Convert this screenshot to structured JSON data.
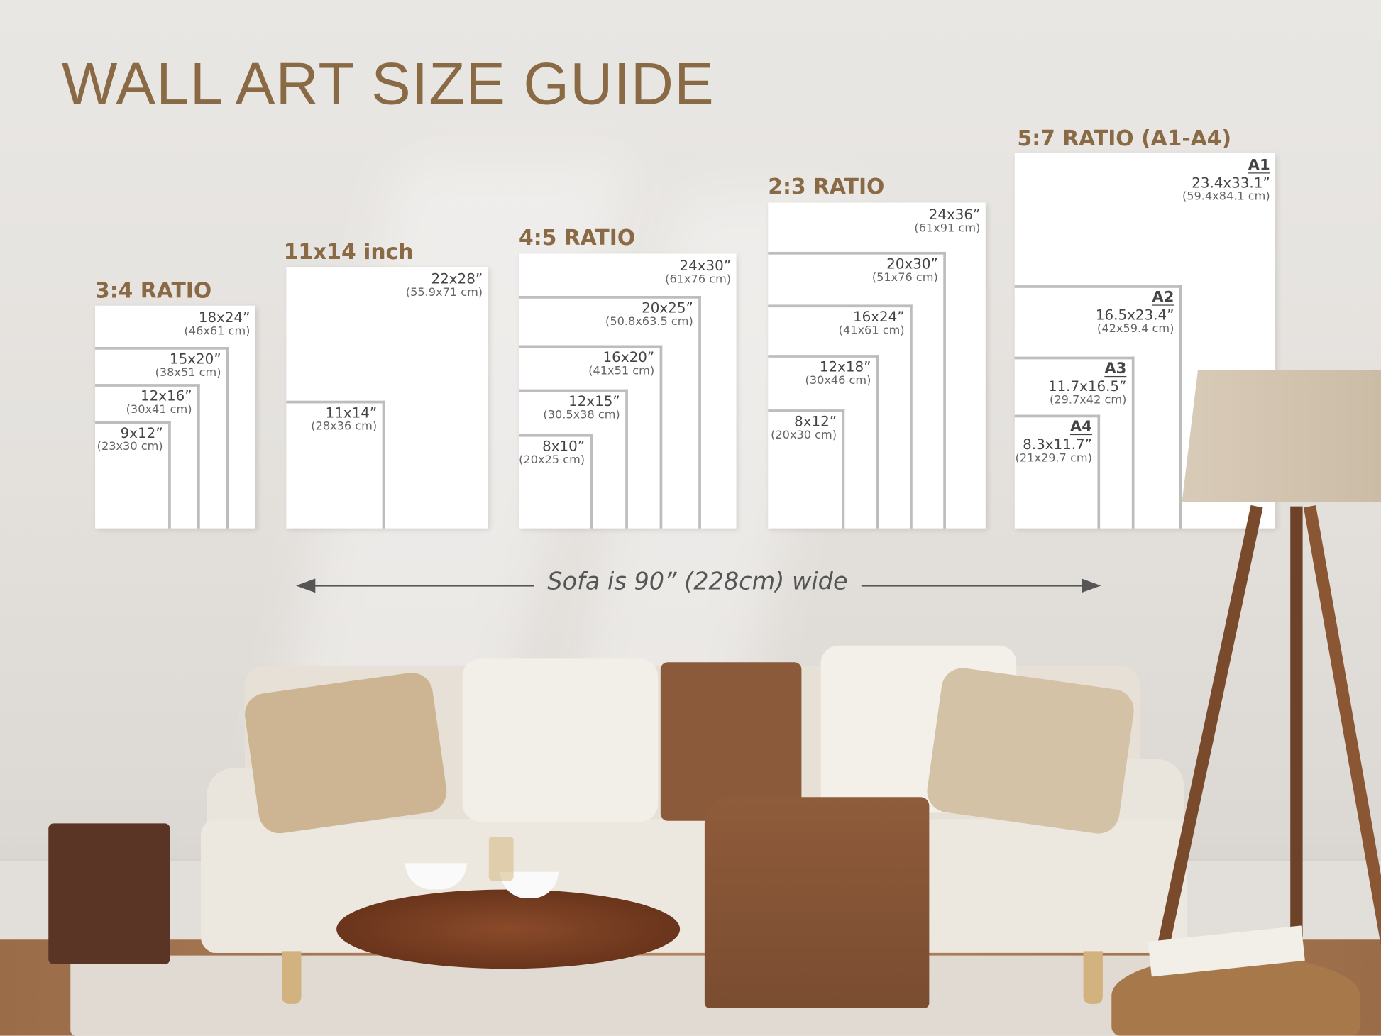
{
  "title": "WALL ART SIZE GUIDE",
  "colors": {
    "heading": "#8a6a45",
    "frame": "#ffffff",
    "frame_border": "#bdbdbd",
    "wall": "#e6e3df"
  },
  "groups": [
    {
      "heading": "3:4 RATIO",
      "sizes": [
        {
          "inches": "18x24”",
          "cm": "(46x61 cm)"
        },
        {
          "inches": "15x20”",
          "cm": "(38x51 cm)"
        },
        {
          "inches": "12x16”",
          "cm": "(30x41 cm)"
        },
        {
          "inches": "9x12”",
          "cm": "(23x30 cm)"
        }
      ]
    },
    {
      "heading": "11x14 inch",
      "sizes": [
        {
          "inches": "22x28”",
          "cm": "(55.9x71 cm)"
        },
        {
          "inches": "11x14”",
          "cm": "(28x36 cm)"
        }
      ]
    },
    {
      "heading": "4:5 RATIO",
      "sizes": [
        {
          "inches": "24x30”",
          "cm": "(61x76 cm)"
        },
        {
          "inches": "20x25”",
          "cm": "(50.8x63.5 cm)"
        },
        {
          "inches": "16x20”",
          "cm": "(41x51 cm)"
        },
        {
          "inches": "12x15”",
          "cm": "(30.5x38 cm)"
        },
        {
          "inches": "8x10”",
          "cm": "(20x25 cm)"
        }
      ]
    },
    {
      "heading": "2:3 RATIO",
      "sizes": [
        {
          "inches": "24x36”",
          "cm": "(61x91 cm)"
        },
        {
          "inches": "20x30”",
          "cm": "(51x76 cm)"
        },
        {
          "inches": "16x24”",
          "cm": "(41x61 cm)"
        },
        {
          "inches": "12x18”",
          "cm": "(30x46 cm)"
        },
        {
          "inches": "8x12”",
          "cm": "(20x30 cm)"
        }
      ]
    },
    {
      "heading": "5:7 RATIO (A1-A4)",
      "sizes": [
        {
          "code": "A1",
          "inches": "23.4x33.1”",
          "cm": "(59.4x84.1 cm)"
        },
        {
          "code": "A2",
          "inches": "16.5x23.4”",
          "cm": "(42x59.4 cm)"
        },
        {
          "code": "A3",
          "inches": "11.7x16.5”",
          "cm": "(29.7x42 cm)"
        },
        {
          "code": "A4",
          "inches": "8.3x11.7”",
          "cm": "(21x29.7 cm)"
        }
      ]
    }
  ],
  "sofa_note": "Sofa is 90” (228cm) wide"
}
